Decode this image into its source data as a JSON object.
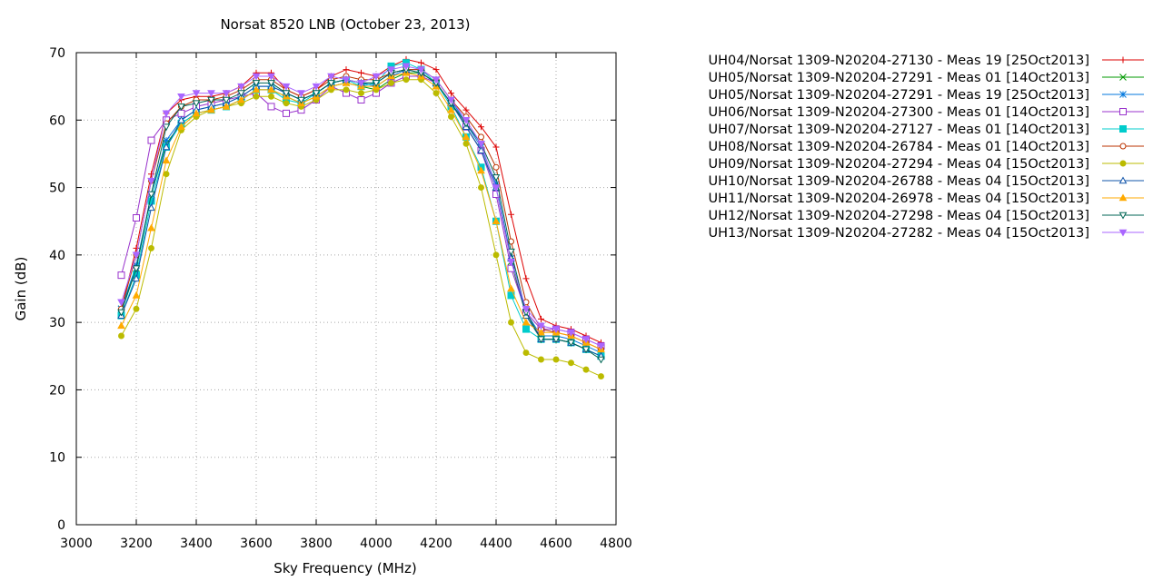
{
  "chart_data": {
    "type": "line",
    "title": "Norsat 8520 LNB (October 23, 2013)",
    "xlabel": "Sky Frequency (MHz)",
    "ylabel": "Gain (dB)",
    "xlim": [
      3000,
      4800
    ],
    "ylim": [
      0,
      70
    ],
    "xticks": [
      "3000",
      "3200",
      "3400",
      "3600",
      "3800",
      "4000",
      "4200",
      "4400",
      "4600",
      "4800"
    ],
    "yticks": [
      "0",
      "10",
      "20",
      "30",
      "40",
      "50",
      "60",
      "70"
    ],
    "grid": true,
    "legend_position": "right",
    "x": [
      3150,
      3200,
      3250,
      3300,
      3350,
      3400,
      3450,
      3500,
      3550,
      3600,
      3650,
      3700,
      3750,
      3800,
      3850,
      3900,
      3950,
      4000,
      4050,
      4100,
      4150,
      4200,
      4250,
      4300,
      4350,
      4400,
      4450,
      4500,
      4550,
      4600,
      4650,
      4700,
      4750
    ],
    "series": [
      {
        "name": "UH04/Norsat 1309-N20204-27130 - Meas 19 [25Oct2013]",
        "color": "#dd0000",
        "marker": "plus",
        "values": [
          32,
          41,
          52,
          61,
          63,
          63.5,
          63.5,
          64,
          65,
          67,
          67,
          64.5,
          63.5,
          64.5,
          66.5,
          67.5,
          67,
          66.5,
          68,
          69,
          68.5,
          67.5,
          64,
          61.5,
          59,
          56,
          46,
          36.5,
          30.5,
          29.5,
          29,
          28,
          27
        ]
      },
      {
        "name": "UH05/Norsat 1309-N20204-27291 - Meas 01 [14Oct2013]",
        "color": "#009900",
        "marker": "x",
        "values": [
          32,
          38,
          49,
          56.5,
          59.5,
          61,
          61.5,
          62,
          63,
          64.5,
          64.5,
          63.5,
          62.5,
          63.5,
          65,
          65.5,
          65,
          64.5,
          66,
          67,
          67,
          65.5,
          62.5,
          59,
          55.5,
          50,
          39,
          31,
          27.5,
          27.5,
          27,
          26,
          25
        ]
      },
      {
        "name": "UH05/Norsat 1309-N20204-27291 - Meas 19 [25Oct2013]",
        "color": "#0077dd",
        "marker": "asterisk",
        "values": [
          32,
          38.5,
          49,
          57,
          60,
          61.5,
          62,
          62.5,
          63.5,
          65,
          65,
          64,
          63,
          64,
          65.5,
          66,
          65.5,
          65,
          66.5,
          67.5,
          67.5,
          66,
          63,
          59.5,
          56,
          50.5,
          39.5,
          31.5,
          28,
          28,
          27.5,
          26.5,
          25.5
        ]
      },
      {
        "name": "UH06/Norsat 1309-N20204-27300 - Meas 01 [14Oct2013]",
        "color": "#9933cc",
        "marker": "square",
        "values": [
          37,
          45.5,
          57,
          60,
          61,
          62,
          62.5,
          63,
          63.5,
          64,
          62,
          61,
          61.5,
          63,
          65,
          64,
          63,
          64,
          65.5,
          66.5,
          66.5,
          65.5,
          62.5,
          59,
          55.5,
          49,
          38,
          31.5,
          29,
          29,
          28.5,
          27.5,
          26.5
        ]
      },
      {
        "name": "UH07/Norsat 1309-N20204-27127 - Meas 01 [14Oct2013]",
        "color": "#00cccc",
        "marker": "filled-square",
        "values": [
          31,
          37,
          48,
          56,
          59.5,
          61,
          61.5,
          62,
          63,
          64.5,
          64.5,
          63,
          62.5,
          64,
          65.5,
          66,
          65,
          65.5,
          68,
          68.5,
          67.5,
          65.5,
          62,
          57.5,
          53,
          45,
          34,
          29,
          27.5,
          27.5,
          27,
          26,
          25
        ]
      },
      {
        "name": "UH08/Norsat 1309-N20204-26784 - Meas 01 [14Oct2013]",
        "color": "#bb3300",
        "marker": "circle",
        "values": [
          32,
          40,
          51,
          59.5,
          62,
          63,
          63,
          63.5,
          64.5,
          66,
          66,
          64.5,
          63.5,
          64.5,
          66,
          66.5,
          66,
          66,
          67,
          67.5,
          67.5,
          66,
          63,
          60.5,
          57.5,
          53,
          42,
          33,
          29,
          28.5,
          28,
          27,
          26
        ]
      },
      {
        "name": "UH09/Norsat 1309-N20204-27294 - Meas 04 [15Oct2013]",
        "color": "#bbbb00",
        "marker": "filled-circle",
        "values": [
          28,
          32,
          41,
          52,
          58.5,
          60.5,
          61.5,
          62,
          62.5,
          63.5,
          63.5,
          62.5,
          62,
          63,
          64.5,
          64.5,
          64,
          64.5,
          65.5,
          66,
          66,
          64,
          60.5,
          56.5,
          50,
          40,
          30,
          25.5,
          24.5,
          24.5,
          24,
          23,
          22
        ]
      },
      {
        "name": "UH10/Norsat 1309-N20204-26788 - Meas 04 [15Oct2013]",
        "color": "#1155aa",
        "marker": "triangle",
        "values": [
          31,
          36.5,
          47,
          56,
          60,
          61.5,
          62,
          62.5,
          63.5,
          65,
          65,
          64,
          63,
          64,
          65.5,
          66,
          65.5,
          65.5,
          67,
          67.5,
          67,
          65.5,
          62.5,
          59,
          55.5,
          50,
          39.5,
          31,
          27.5,
          27.5,
          27,
          26,
          25
        ]
      },
      {
        "name": "UH11/Norsat 1309-N20204-26978 - Meas 04 [15Oct2013]",
        "color": "#ffaa00",
        "marker": "filled-triangle",
        "values": [
          29.5,
          34,
          44,
          54,
          59,
          61,
          61.5,
          62,
          63,
          64.5,
          64.5,
          63.5,
          62.5,
          63.5,
          65,
          65.5,
          65,
          65,
          66.5,
          67,
          66.5,
          65,
          61.5,
          57.5,
          52.5,
          45,
          35,
          30,
          28.5,
          28.5,
          28,
          27,
          26
        ]
      },
      {
        "name": "UH12/Norsat 1309-N20204-27298 - Meas 04 [15Oct2013]",
        "color": "#006655",
        "marker": "inverted-triangle",
        "values": [
          31.5,
          38,
          49,
          59,
          62,
          62.5,
          63,
          63,
          64,
          65.5,
          65.5,
          64,
          63,
          64,
          65.5,
          66,
          65.5,
          65.5,
          67,
          67.5,
          67,
          65.5,
          62.5,
          59.5,
          56.5,
          51.5,
          40.5,
          31.5,
          27.5,
          27.5,
          27,
          26,
          24.5
        ]
      },
      {
        "name": "UH13/Norsat 1309-N20204-27282 - Meas 04 [15Oct2013]",
        "color": "#aa66ff",
        "marker": "filled-inverted-triangle",
        "values": [
          33,
          40,
          51,
          61,
          63.5,
          64,
          64,
          64,
          65,
          66.5,
          66.5,
          65,
          64,
          65,
          66.5,
          66,
          65.5,
          66.5,
          67.5,
          68,
          67.5,
          66,
          63,
          60,
          56.5,
          50,
          39,
          32,
          29.5,
          29,
          28.5,
          27.5,
          26.5
        ]
      }
    ]
  }
}
